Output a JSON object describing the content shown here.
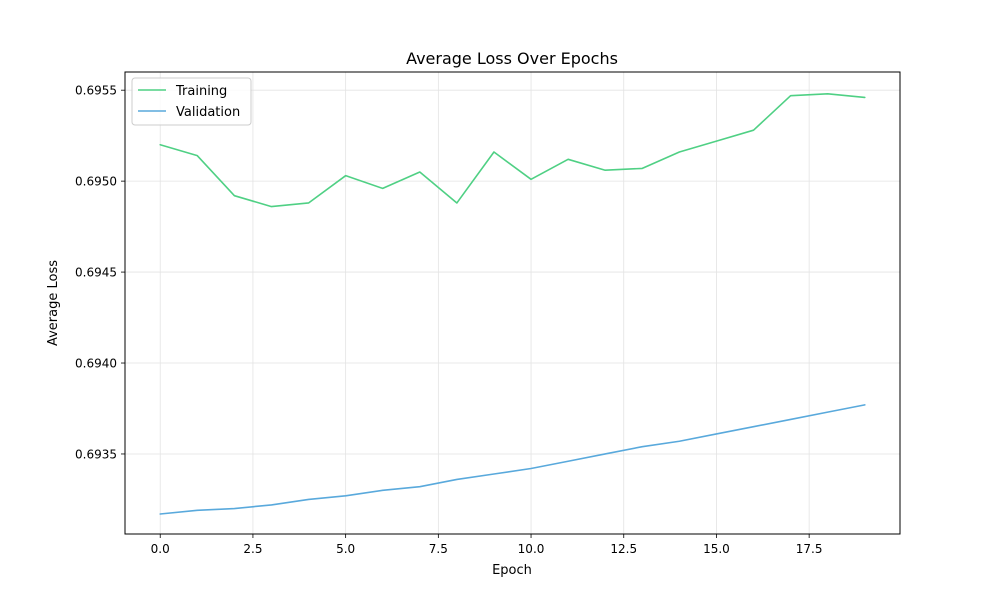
{
  "chart_data": {
    "type": "line",
    "title": "Average Loss Over Epochs",
    "xlabel": "Epoch",
    "ylabel": "Average Loss",
    "xlim": [
      -0.95,
      19.95
    ],
    "ylim": [
      0.69306,
      0.6956
    ],
    "xticks": [
      0.0,
      2.5,
      5.0,
      7.5,
      10.0,
      12.5,
      15.0,
      17.5
    ],
    "xtick_labels": [
      "0.0",
      "2.5",
      "5.0",
      "7.5",
      "10.0",
      "12.5",
      "15.0",
      "17.5"
    ],
    "yticks": [
      0.6935,
      0.694,
      0.6945,
      0.695,
      0.6955
    ],
    "ytick_labels": [
      "0.6935",
      "0.6940",
      "0.6945",
      "0.6950",
      "0.6955"
    ],
    "grid": true,
    "legend_position": "upper-left",
    "x": [
      0,
      1,
      2,
      3,
      4,
      5,
      6,
      7,
      8,
      9,
      10,
      11,
      12,
      13,
      14,
      15,
      16,
      17,
      18,
      19
    ],
    "series": [
      {
        "name": "Training",
        "color": "#4fd084",
        "values": [
          0.6952,
          0.69514,
          0.69492,
          0.69486,
          0.69488,
          0.69503,
          0.69496,
          0.69505,
          0.69488,
          0.69516,
          0.69501,
          0.69512,
          0.69506,
          0.69507,
          0.69516,
          0.69522,
          0.69528,
          0.69547,
          0.69548,
          0.69546
        ]
      },
      {
        "name": "Validation",
        "color": "#59a9dc",
        "values": [
          0.69317,
          0.69319,
          0.6932,
          0.69322,
          0.69325,
          0.69327,
          0.6933,
          0.69332,
          0.69336,
          0.69339,
          0.69342,
          0.69346,
          0.6935,
          0.69354,
          0.69357,
          0.69361,
          0.69365,
          0.69369,
          0.69373,
          0.69377
        ]
      }
    ]
  }
}
